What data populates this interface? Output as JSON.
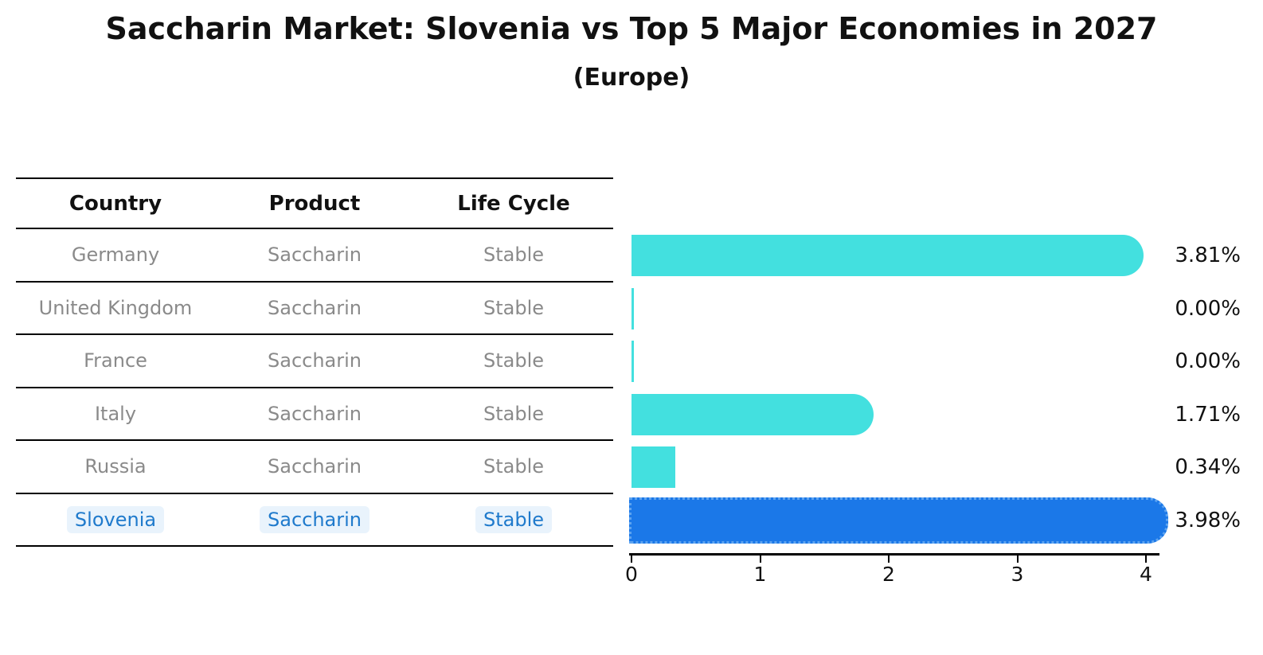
{
  "title": "Saccharin Market: Slovenia vs Top 5 Major Economies in 2027",
  "subtitle": "(Europe)",
  "table": {
    "headers": [
      "Country",
      "Product",
      "Life Cycle"
    ],
    "rows": [
      {
        "country": "Germany",
        "product": "Saccharin",
        "life_cycle": "Stable",
        "highlight": false
      },
      {
        "country": "United Kingdom",
        "product": "Saccharin",
        "life_cycle": "Stable",
        "highlight": false
      },
      {
        "country": "France",
        "product": "Saccharin",
        "life_cycle": "Stable",
        "highlight": false
      },
      {
        "country": "Italy",
        "product": "Saccharin",
        "life_cycle": "Stable",
        "highlight": false
      },
      {
        "country": "Russia",
        "product": "Saccharin",
        "life_cycle": "Stable",
        "highlight": false
      },
      {
        "country": "Slovenia",
        "product": "Saccharin",
        "life_cycle": "Stable",
        "highlight": true
      }
    ]
  },
  "chart_data": {
    "type": "bar",
    "orientation": "horizontal",
    "title": "Saccharin Market: Slovenia vs Top 5 Major Economies in 2027",
    "subtitle": "(Europe)",
    "categories": [
      "Germany",
      "United Kingdom",
      "France",
      "Italy",
      "Russia",
      "Slovenia"
    ],
    "values": [
      3.81,
      0.0,
      0.0,
      1.71,
      0.34,
      3.98
    ],
    "value_labels": [
      "3.81%",
      "0.00%",
      "0.00%",
      "1.71%",
      "0.34%",
      "3.98%"
    ],
    "x_ticks": [
      "0",
      "1",
      "2",
      "3",
      "4"
    ],
    "xlim": [
      0,
      4.15
    ],
    "grid": false,
    "legend": "none",
    "highlight_index": 5,
    "bar_color": "#43e0df",
    "highlight_color": "#1b78e8",
    "highlight_text_color": "#1f7acc"
  }
}
